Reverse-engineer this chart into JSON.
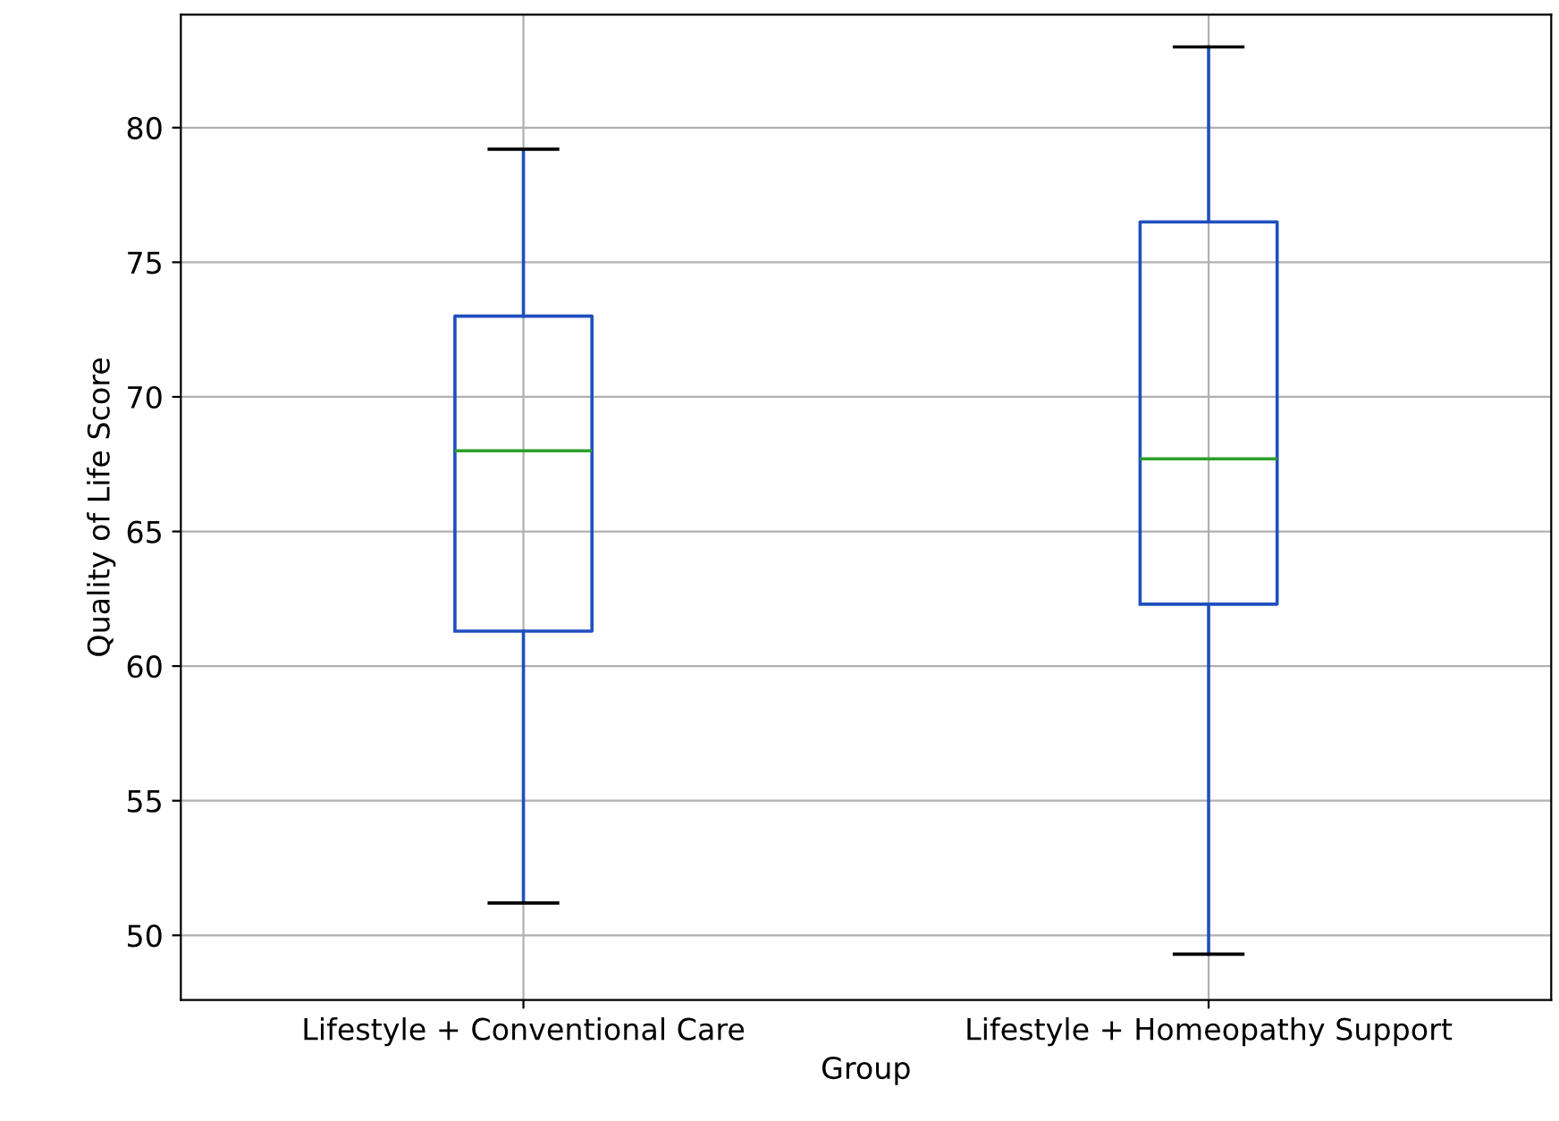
{
  "chart_data": {
    "type": "box",
    "xlabel": "Group",
    "ylabel": "Quality of Life Score",
    "categories": [
      "Lifestyle + Conventional Care",
      "Lifestyle + Homeopathy Support"
    ],
    "boxes": [
      {
        "low": 51.2,
        "q1": 61.3,
        "median": 68.0,
        "q3": 73.0,
        "high": 79.2
      },
      {
        "low": 49.3,
        "q1": 62.3,
        "median": 67.7,
        "q3": 76.5,
        "high": 83.0
      }
    ],
    "color": "#1f4fbf",
    "ylim": [
      47.6,
      84.2
    ],
    "yticks": [
      50,
      55,
      60,
      65,
      70,
      75,
      80
    ],
    "grid": true
  }
}
